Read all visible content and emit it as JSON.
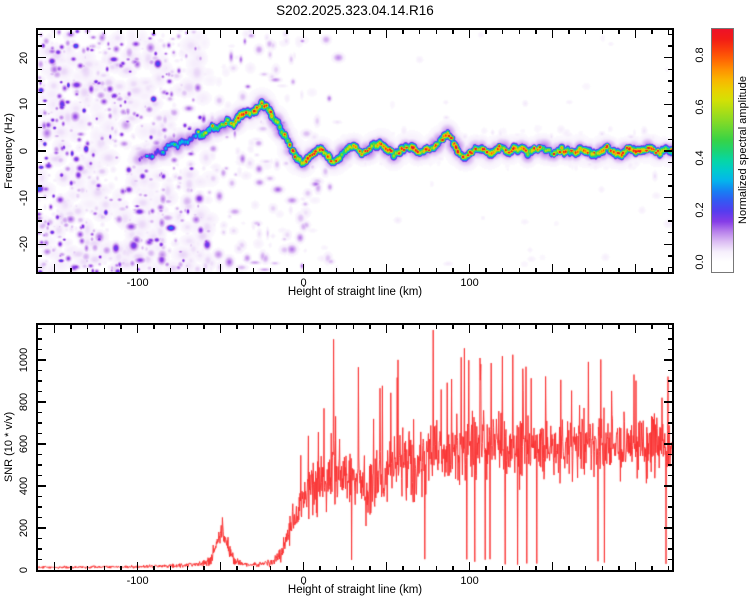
{
  "title": "S202.2025.323.04.14.R16",
  "chart_data": [
    {
      "type": "heatmap",
      "name": "doppler-spectrogram",
      "xlabel": "Height of straight line (km)",
      "ylabel": "Frequency (Hz)",
      "xlim": [
        -160,
        222
      ],
      "ylim": [
        -25.9,
        25.9
      ],
      "x_major_step": 50,
      "x_minor_step": 10,
      "x_labeled_ticks": [
        -100,
        0,
        100
      ],
      "y_major_step": 10,
      "y_minor_step": 2.5,
      "y_labeled_ticks": [
        -20,
        -10,
        0,
        10,
        20
      ],
      "grid": false,
      "colorbar": {
        "label": "Normalized spectral amplitude",
        "min": -0.04,
        "max": 0.9,
        "labeled_ticks": [
          0.0,
          0.2,
          0.4,
          0.6,
          0.8
        ]
      },
      "colormap_stops": [
        [
          0.0,
          255,
          255,
          255
        ],
        [
          0.04,
          246,
          238,
          252
        ],
        [
          0.1,
          205,
          160,
          238
        ],
        [
          0.15,
          140,
          60,
          230
        ],
        [
          0.2,
          80,
          60,
          240
        ],
        [
          0.26,
          30,
          110,
          245
        ],
        [
          0.32,
          0,
          190,
          235
        ],
        [
          0.38,
          0,
          215,
          180
        ],
        [
          0.46,
          45,
          210,
          75
        ],
        [
          0.56,
          150,
          220,
          30
        ],
        [
          0.64,
          225,
          225,
          0
        ],
        [
          0.72,
          255,
          170,
          0
        ],
        [
          0.8,
          255,
          80,
          5
        ],
        [
          0.87,
          240,
          20,
          25
        ],
        [
          0.94,
          232,
          12,
          60
        ],
        [
          1.0,
          222,
          18,
          90
        ]
      ],
      "ridge_path": [
        [
          -99,
          -1.8
        ],
        [
          -95,
          -0.6
        ],
        [
          -91,
          -1.2
        ],
        [
          -88,
          0.2
        ],
        [
          -85,
          -0.6
        ],
        [
          -82,
          1
        ],
        [
          -79,
          1.6
        ],
        [
          -76,
          1
        ],
        [
          -73,
          2.4
        ],
        [
          -70,
          2
        ],
        [
          -67,
          3.2
        ],
        [
          -64,
          3.8
        ],
        [
          -61,
          3
        ],
        [
          -58,
          4.4
        ],
        [
          -55,
          5.2
        ],
        [
          -52,
          4.6
        ],
        [
          -49,
          5.8
        ],
        [
          -46,
          6.6
        ],
        [
          -43,
          5.8
        ],
        [
          -40,
          7
        ],
        [
          -37,
          7.8
        ],
        [
          -34,
          8.6
        ],
        [
          -31,
          8
        ],
        [
          -28,
          9.2
        ],
        [
          -25,
          10.2
        ],
        [
          -22,
          9.2
        ],
        [
          -19,
          7.6
        ],
        [
          -16,
          6.2
        ],
        [
          -13,
          4.2
        ],
        [
          -10,
          2.2
        ],
        [
          -7,
          0.2
        ],
        [
          -4,
          -1.4
        ],
        [
          -1,
          -2.2
        ],
        [
          2,
          -1.6
        ],
        [
          5,
          -0.6
        ],
        [
          8,
          0.6
        ],
        [
          11,
          0.2
        ],
        [
          14,
          -1
        ],
        [
          17,
          -2.2
        ],
        [
          20,
          -1.8
        ],
        [
          23,
          -0.6
        ],
        [
          26,
          0.6
        ],
        [
          29,
          1.2
        ],
        [
          32,
          0.4
        ],
        [
          35,
          -0.6
        ],
        [
          38,
          0.2
        ],
        [
          42,
          1.2
        ],
        [
          46,
          1.4
        ],
        [
          50,
          0.4
        ],
        [
          54,
          -0.6
        ],
        [
          58,
          0.2
        ],
        [
          62,
          1.2
        ],
        [
          66,
          0.6
        ],
        [
          70,
          -0.2
        ],
        [
          74,
          0.8
        ],
        [
          78,
          0.4
        ],
        [
          81,
          1.6
        ],
        [
          84,
          3.4
        ],
        [
          87,
          3.8
        ],
        [
          90,
          2
        ],
        [
          93,
          -0.2
        ],
        [
          96,
          -1.5
        ],
        [
          99,
          -0.8
        ],
        [
          103,
          0.5
        ],
        [
          107,
          0.8
        ],
        [
          111,
          -0.3
        ],
        [
          115,
          0.3
        ],
        [
          119,
          0.8
        ],
        [
          123,
          -0.2
        ],
        [
          127,
          0.5
        ],
        [
          131,
          0.8
        ],
        [
          135,
          -0.4
        ],
        [
          139,
          0.3
        ],
        [
          143,
          0.8
        ],
        [
          147,
          0.2
        ],
        [
          151,
          -0.4
        ],
        [
          155,
          0.4
        ],
        [
          159,
          0.1
        ],
        [
          163,
          -0.4
        ],
        [
          167,
          0.5
        ],
        [
          171,
          0.2
        ],
        [
          175,
          -0.5
        ],
        [
          179,
          0.3
        ],
        [
          183,
          0.7
        ],
        [
          187,
          -0.1
        ],
        [
          191,
          -0.5
        ],
        [
          195,
          0.6
        ],
        [
          199,
          0.3
        ],
        [
          203,
          -0.2
        ],
        [
          207,
          0.6
        ],
        [
          211,
          0.1
        ],
        [
          215,
          -0.3
        ],
        [
          219,
          0.5
        ],
        [
          222,
          0.2
        ]
      ],
      "ridge_amplitude": [
        [
          -99,
          0.22
        ],
        [
          -92,
          0.26
        ],
        [
          -85,
          0.3
        ],
        [
          -78,
          0.34
        ],
        [
          -71,
          0.38
        ],
        [
          -64,
          0.45
        ],
        [
          -57,
          0.52
        ],
        [
          -50,
          0.6
        ],
        [
          -44,
          0.68
        ],
        [
          -38,
          0.73
        ],
        [
          -31,
          0.76
        ],
        [
          -25,
          0.73
        ],
        [
          -19,
          0.7
        ],
        [
          -13,
          0.74
        ],
        [
          -7,
          0.78
        ],
        [
          0,
          0.8
        ],
        [
          50,
          0.8
        ],
        [
          100,
          0.8
        ],
        [
          160,
          0.8
        ],
        [
          222,
          0.8
        ]
      ],
      "noise_description": "dense purple speckle noise left of -60 km fading rightward, sparse faint speckle near ridge elsewhere"
    },
    {
      "type": "line",
      "name": "snr-profile",
      "xlabel": "Height of straight line (km)",
      "ylabel": "SNR (10 * v/v)",
      "xlim": [
        -160,
        222
      ],
      "ylim": [
        0,
        1166
      ],
      "x_major_step": 50,
      "x_minor_step": 10,
      "x_labeled_ticks": [
        -100,
        0,
        100
      ],
      "y_major_step": 200,
      "y_minor_step": 50,
      "y_labeled_ticks": [
        0,
        200,
        400,
        600,
        800,
        1000
      ],
      "grid": false,
      "line_color": "#fa3232",
      "envelope": [
        [
          -160,
          13,
          8
        ],
        [
          -140,
          13,
          8
        ],
        [
          -120,
          14,
          9
        ],
        [
          -100,
          16,
          11
        ],
        [
          -88,
          18,
          13
        ],
        [
          -76,
          20,
          16
        ],
        [
          -64,
          24,
          18
        ],
        [
          -56,
          45,
          35
        ],
        [
          -50,
          175,
          75
        ],
        [
          -46,
          120,
          70
        ],
        [
          -42,
          45,
          30
        ],
        [
          -36,
          26,
          16
        ],
        [
          -30,
          26,
          16
        ],
        [
          -24,
          30,
          20
        ],
        [
          -18,
          40,
          30
        ],
        [
          -14,
          70,
          55
        ],
        [
          -10,
          150,
          100
        ],
        [
          -6,
          260,
          140
        ],
        [
          -2,
          320,
          160
        ],
        [
          2,
          370,
          185
        ],
        [
          6,
          410,
          200
        ],
        [
          10,
          430,
          205
        ],
        [
          14,
          430,
          220
        ],
        [
          18,
          510,
          280
        ],
        [
          22,
          470,
          240
        ],
        [
          26,
          440,
          225
        ],
        [
          30,
          430,
          225
        ],
        [
          34,
          395,
          230
        ],
        [
          38,
          375,
          230
        ],
        [
          44,
          415,
          230
        ],
        [
          50,
          470,
          240
        ],
        [
          56,
          515,
          240
        ],
        [
          62,
          535,
          245
        ],
        [
          68,
          500,
          250
        ],
        [
          74,
          555,
          260
        ],
        [
          80,
          595,
          265
        ],
        [
          86,
          560,
          245
        ],
        [
          92,
          580,
          245
        ],
        [
          98,
          600,
          240
        ],
        [
          104,
          565,
          235
        ],
        [
          110,
          580,
          230
        ],
        [
          116,
          600,
          230
        ],
        [
          122,
          590,
          230
        ],
        [
          128,
          580,
          230
        ],
        [
          134,
          600,
          228
        ],
        [
          140,
          580,
          222
        ],
        [
          146,
          572,
          220
        ],
        [
          152,
          580,
          220
        ],
        [
          160,
          590,
          220
        ],
        [
          168,
          582,
          212
        ],
        [
          176,
          590,
          210
        ],
        [
          184,
          598,
          210
        ],
        [
          192,
          582,
          210
        ],
        [
          200,
          590,
          208
        ],
        [
          208,
          582,
          202
        ],
        [
          215,
          598,
          200
        ],
        [
          222,
          618,
          185
        ]
      ],
      "spikes": [
        [
          -49,
          250
        ],
        [
          18,
          1098
        ],
        [
          33,
          965
        ],
        [
          57,
          1000
        ],
        [
          78,
          1142
        ],
        [
          95,
          1012
        ],
        [
          113,
          985
        ],
        [
          132,
          958
        ],
        [
          155,
          905
        ],
        [
          179,
          1002
        ],
        [
          199,
          930
        ],
        [
          216,
          820
        ]
      ]
    }
  ]
}
